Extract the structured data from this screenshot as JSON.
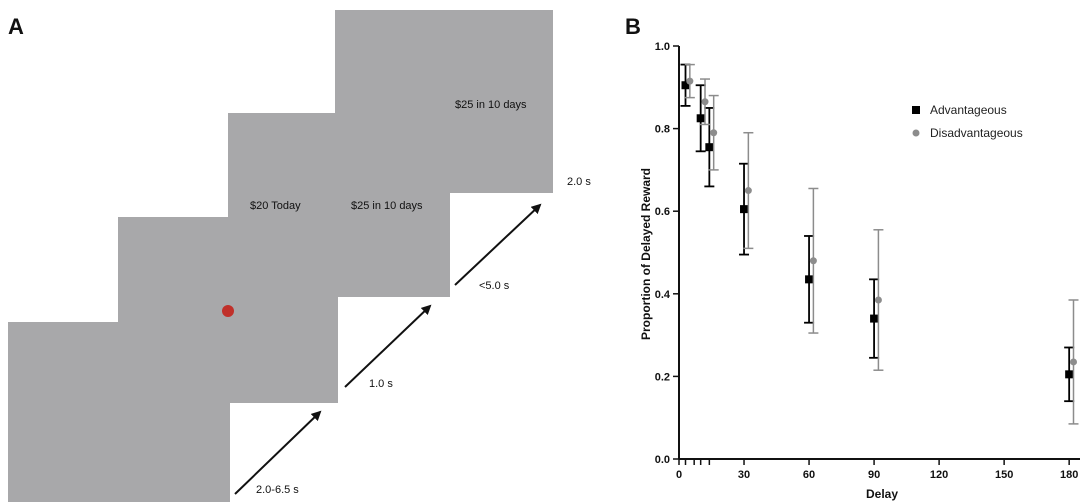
{
  "panel_a": {
    "letter": "A",
    "screens": [
      {
        "text": ""
      },
      {
        "text": ""
      },
      {
        "text": "$20 Today"
      },
      {
        "text": "$25 in 10 days"
      },
      {
        "text": "$25 in 10 days"
      }
    ],
    "fixation_color": "#c0302a",
    "timings": [
      "2.0-6.5 s",
      "1.0 s",
      "<5.0 s",
      "2.0 s"
    ]
  },
  "panel_b": {
    "letter": "B"
  },
  "chart_data": {
    "type": "scatter",
    "xlabel": "Delay",
    "ylabel": "Proportion of Delayed Reward",
    "xlim": [
      0,
      185
    ],
    "ylim": [
      0,
      1.0
    ],
    "x_ticks": [
      0,
      30,
      60,
      90,
      120,
      150,
      180
    ],
    "x_minor_ticks": [
      3,
      7,
      10,
      14
    ],
    "y_ticks": [
      0.0,
      0.2,
      0.4,
      0.6,
      0.8,
      1.0
    ],
    "y_tick_labels": [
      "0.0",
      "0.2",
      "0.4",
      "0.6",
      "0.8",
      "1.0"
    ],
    "legend_position": "top-right",
    "series": [
      {
        "name": "Advantageous",
        "color": "#000000",
        "marker": "square",
        "points": [
          {
            "x": 3,
            "y": 0.905,
            "err": 0.05
          },
          {
            "x": 10,
            "y": 0.825,
            "err": 0.08
          },
          {
            "x": 14,
            "y": 0.755,
            "err": 0.095
          },
          {
            "x": 30,
            "y": 0.605,
            "err": 0.11
          },
          {
            "x": 60,
            "y": 0.435,
            "err": 0.105
          },
          {
            "x": 90,
            "y": 0.34,
            "err": 0.095
          },
          {
            "x": 180,
            "y": 0.205,
            "err": 0.065
          }
        ]
      },
      {
        "name": "Disadvantageous",
        "color": "#8c8c8c",
        "marker": "circle",
        "points": [
          {
            "x": 5,
            "y": 0.915,
            "err": 0.04
          },
          {
            "x": 12,
            "y": 0.865,
            "err": 0.055
          },
          {
            "x": 16,
            "y": 0.79,
            "err": 0.09
          },
          {
            "x": 32,
            "y": 0.65,
            "err": 0.14
          },
          {
            "x": 62,
            "y": 0.48,
            "err": 0.175
          },
          {
            "x": 92,
            "y": 0.385,
            "err": 0.17
          },
          {
            "x": 182,
            "y": 0.235,
            "err": 0.15
          }
        ]
      }
    ]
  }
}
